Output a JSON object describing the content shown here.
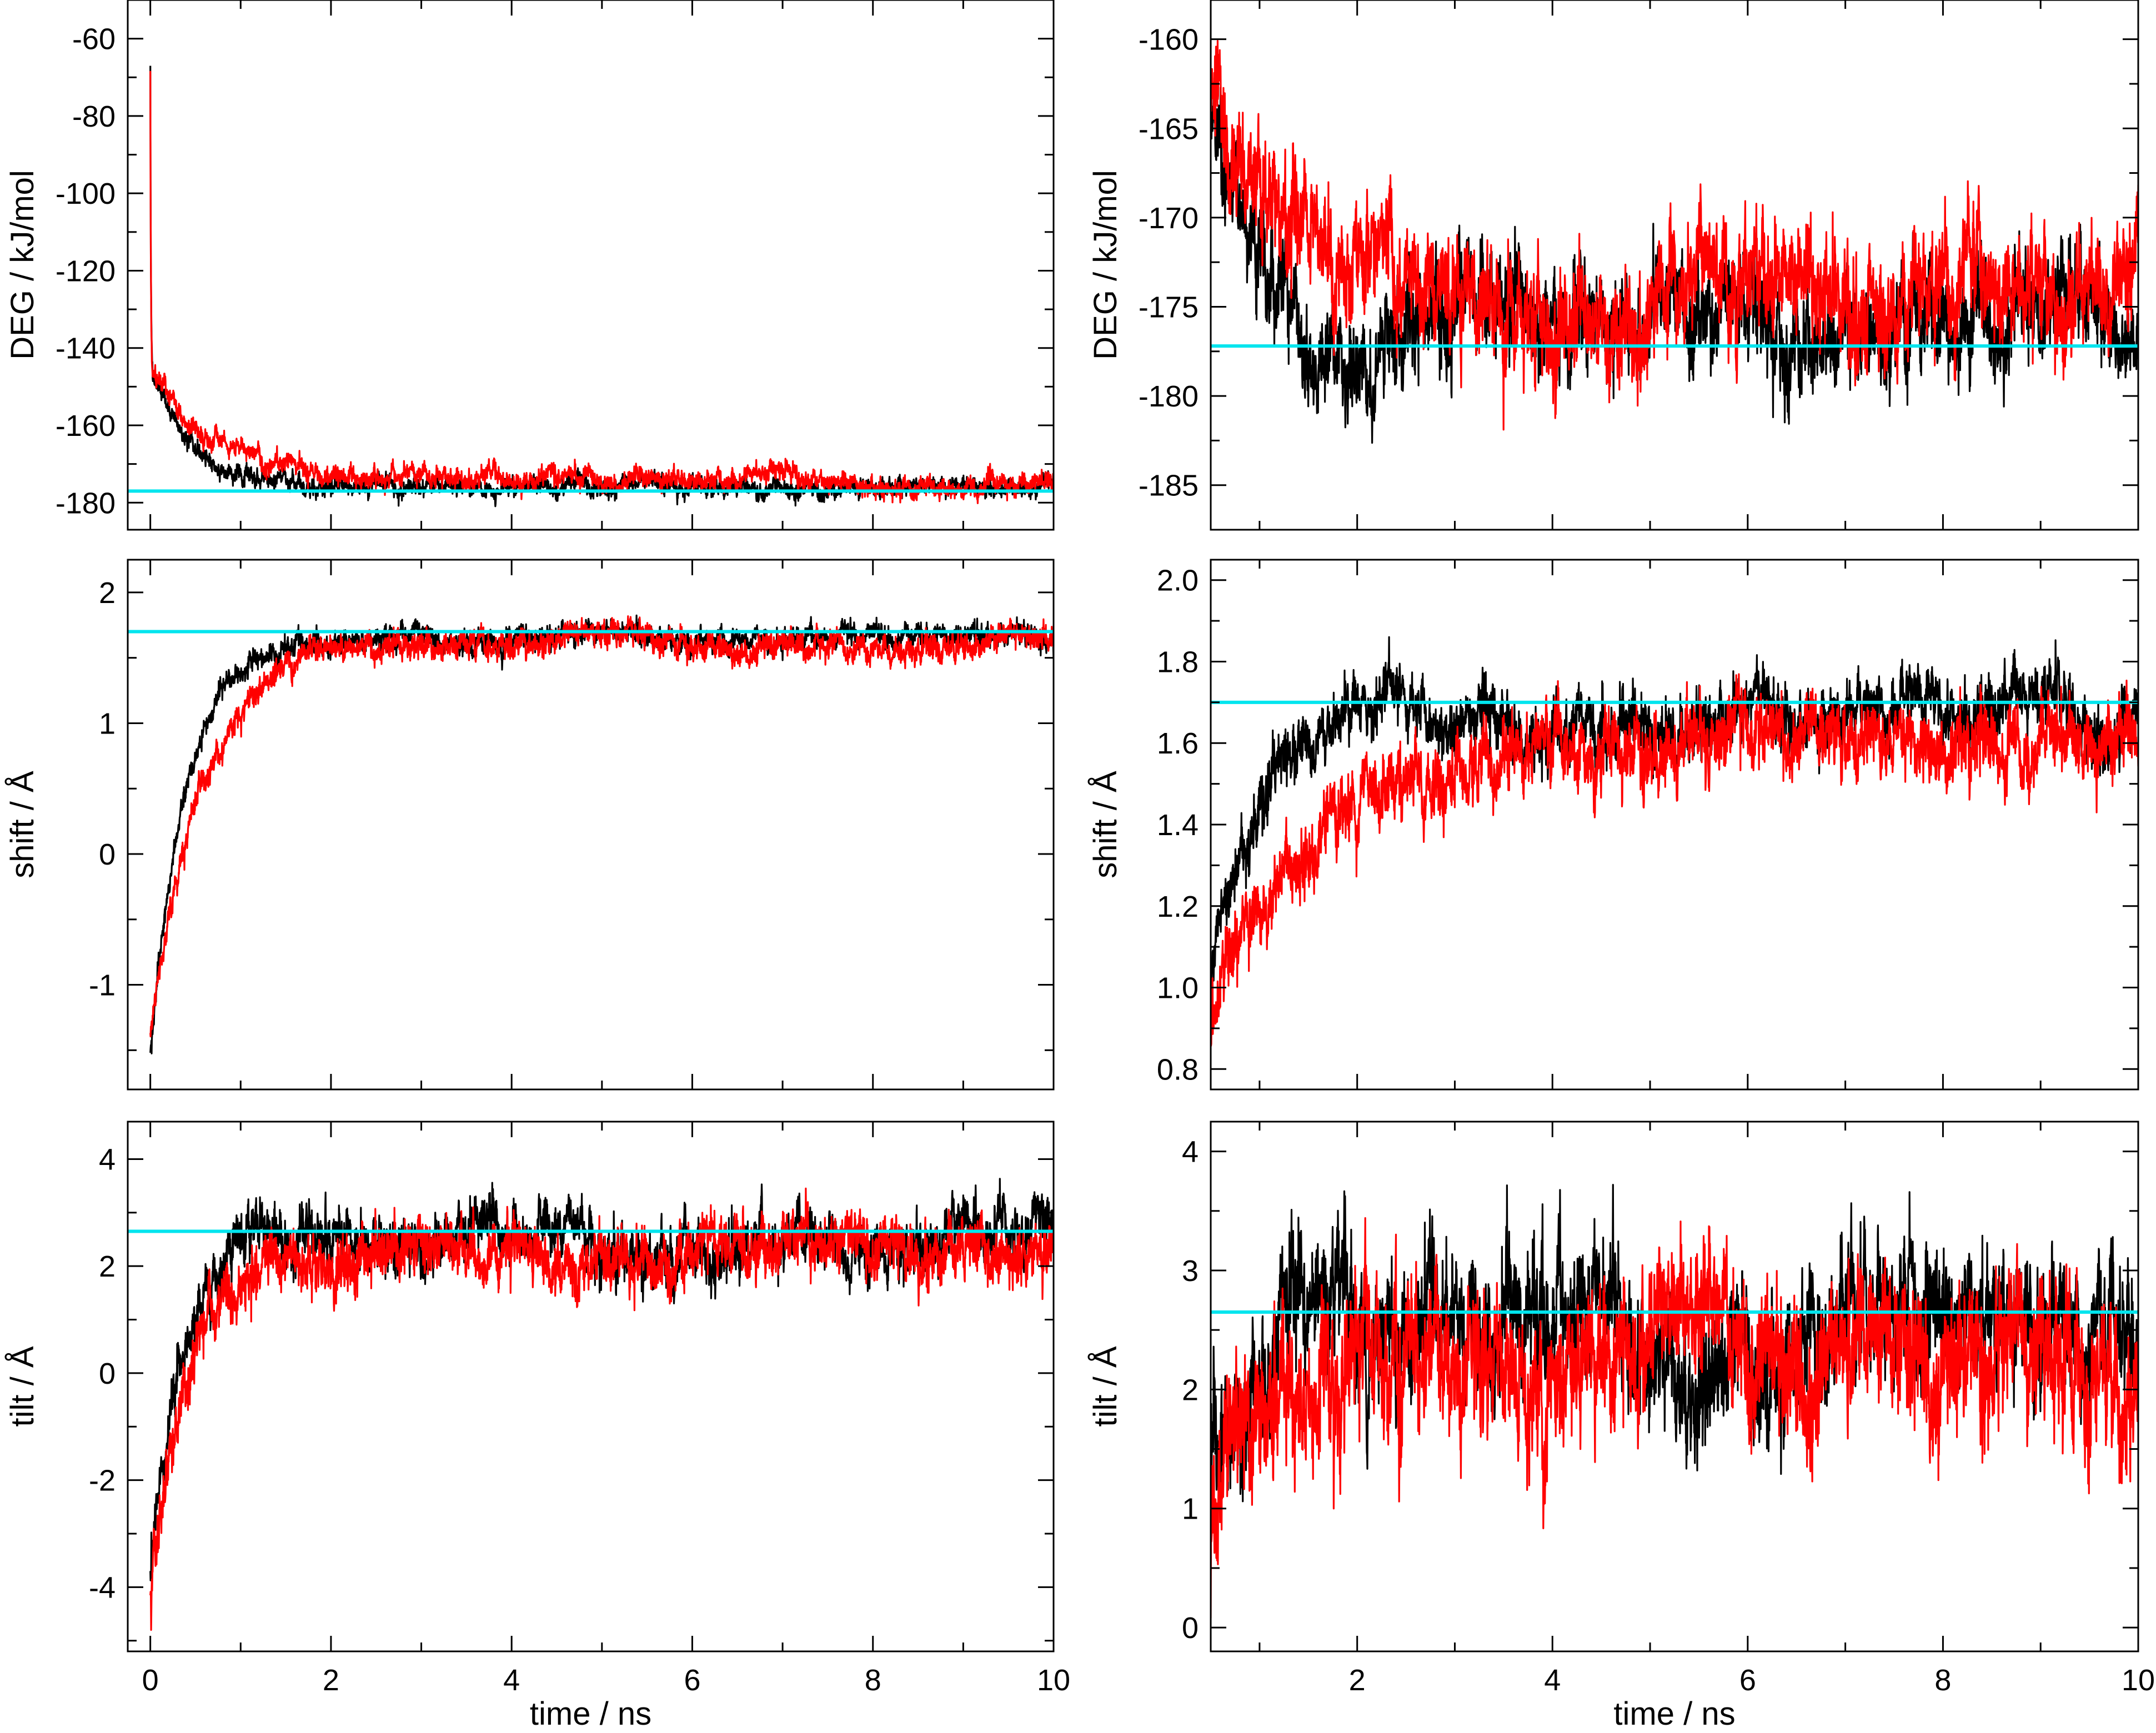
{
  "colors": {
    "black_series": "#000000",
    "red_series": "#ff0000",
    "reference_line": "#00e5ee",
    "axes": "#000000",
    "background": "#ffffff"
  },
  "chart_data": [
    {
      "id": "deg-full",
      "type": "line",
      "title": "",
      "xlabel": "",
      "ylabel": "DEG / kJ/mol",
      "xlim": [
        -0.25,
        10
      ],
      "ylim": [
        -187,
        -50
      ],
      "xticks": [
        0,
        2,
        4,
        6,
        8,
        10
      ],
      "yticks": [
        -180,
        -160,
        -140,
        -120,
        -100,
        -80,
        -60
      ],
      "ytick_labels": [
        "-180",
        "-160",
        "-140",
        "-120",
        "-100",
        "-80",
        "-60"
      ],
      "show_xtick_labels": false,
      "grid": false,
      "reference_line": -177,
      "series": [
        {
          "name": "black",
          "color": "#000000",
          "start": -145,
          "plateau": -176.5,
          "tau": 0.5,
          "noise": 1.9,
          "start_time": 0.0,
          "spike": -68,
          "seed": 11
        },
        {
          "name": "red",
          "color": "#ff0000",
          "start": -145,
          "plateau": -174.2,
          "tau": 0.55,
          "noise": 2.1,
          "start_time": 0.0,
          "spike": -68,
          "seed": 23
        }
      ]
    },
    {
      "id": "deg-zoom",
      "type": "line",
      "title": "",
      "xlabel": "",
      "ylabel": "DEG / kJ/mol",
      "xlim": [
        0.5,
        10
      ],
      "ylim": [
        -187.5,
        -157.8
      ],
      "xticks": [
        2,
        4,
        6,
        8,
        10
      ],
      "yticks": [
        -185,
        -180,
        -175,
        -170,
        -165,
        -160
      ],
      "ytick_labels": [
        "-185",
        "-180",
        "-175",
        "-170",
        "-165",
        "-160"
      ],
      "show_xtick_labels": false,
      "grid": false,
      "reference_line": -177.2,
      "series": [
        {
          "name": "black",
          "color": "#000000",
          "start": -165,
          "plateau": -176.2,
          "tau": 0.45,
          "noise": 2.2,
          "start_time": 0.5,
          "seed": 31
        },
        {
          "name": "red",
          "color": "#ff0000",
          "start": -162,
          "plateau": -174.5,
          "tau": 0.5,
          "noise": 2.4,
          "start_time": 0.5,
          "seed": 47
        }
      ]
    },
    {
      "id": "shift-full",
      "type": "line",
      "title": "",
      "xlabel": "",
      "ylabel": "shift / Å",
      "xlim": [
        -0.25,
        10
      ],
      "ylim": [
        -1.8,
        2.25
      ],
      "xticks": [
        0,
        2,
        4,
        6,
        8,
        10
      ],
      "yticks": [
        -1,
        0,
        1,
        2
      ],
      "ytick_labels": [
        "-1",
        "0",
        "1",
        "2"
      ],
      "show_xtick_labels": false,
      "grid": false,
      "reference_line": 1.7,
      "series": [
        {
          "name": "black",
          "color": "#000000",
          "start": -1.5,
          "plateau": 1.66,
          "tau": 0.4,
          "noise": 0.07,
          "start_time": 0.0,
          "seed": 53
        },
        {
          "name": "red",
          "color": "#ff0000",
          "start": -1.4,
          "plateau": 1.6,
          "tau": 0.55,
          "noise": 0.08,
          "start_time": 0.0,
          "seed": 61
        }
      ]
    },
    {
      "id": "shift-zoom",
      "type": "line",
      "title": "",
      "xlabel": "",
      "ylabel": "shift / Å",
      "xlim": [
        0.5,
        10
      ],
      "ylim": [
        0.75,
        2.05
      ],
      "xticks": [
        2,
        4,
        6,
        8,
        10
      ],
      "yticks": [
        0.8,
        1.0,
        1.2,
        1.4,
        1.6,
        1.8,
        2.0
      ],
      "ytick_labels": [
        "0.8",
        "1.0",
        "1.2",
        "1.4",
        "1.6",
        "1.8",
        "2.0"
      ],
      "show_xtick_labels": false,
      "grid": false,
      "reference_line": 1.7,
      "series": [
        {
          "name": "black",
          "color": "#000000",
          "start": 1.05,
          "plateau": 1.66,
          "tau": 0.5,
          "noise": 0.06,
          "start_time": 0.5,
          "seed": 71
        },
        {
          "name": "red",
          "color": "#ff0000",
          "start": 0.9,
          "plateau": 1.6,
          "tau": 0.9,
          "noise": 0.07,
          "start_time": 0.5,
          "seed": 83
        }
      ]
    },
    {
      "id": "tilt-full",
      "type": "line",
      "title": "",
      "xlabel": "time / ns",
      "ylabel": "tilt / Å",
      "xlim": [
        -0.25,
        10
      ],
      "ylim": [
        -5.2,
        4.7
      ],
      "xticks": [
        0,
        2,
        4,
        6,
        8,
        10
      ],
      "xtick_labels": [
        "0",
        "2",
        "4",
        "6",
        "8",
        "10"
      ],
      "yticks": [
        -4,
        -2,
        0,
        2,
        4
      ],
      "ytick_labels": [
        "-4",
        "-2",
        "0",
        "2",
        "4"
      ],
      "show_xtick_labels": true,
      "grid": false,
      "reference_line": 2.65,
      "series": [
        {
          "name": "black",
          "color": "#000000",
          "start": -4.0,
          "plateau": 2.55,
          "tau": 0.35,
          "noise": 0.4,
          "start_time": 0.0,
          "seed": 97
        },
        {
          "name": "red",
          "color": "#ff0000",
          "start": -4.2,
          "plateau": 2.25,
          "tau": 0.4,
          "noise": 0.42,
          "start_time": 0.0,
          "seed": 101
        }
      ]
    },
    {
      "id": "tilt-zoom",
      "type": "line",
      "title": "",
      "xlabel": "time / ns",
      "ylabel": "tilt / Å",
      "xlim": [
        0.5,
        10
      ],
      "ylim": [
        -0.2,
        4.25
      ],
      "xticks": [
        2,
        4,
        6,
        8,
        10
      ],
      "xtick_labels": [
        "2",
        "4",
        "6",
        "8",
        "10"
      ],
      "yticks": [
        0,
        1,
        2,
        3,
        4
      ],
      "ytick_labels": [
        "0",
        "1",
        "2",
        "3",
        "4"
      ],
      "show_xtick_labels": true,
      "grid": false,
      "reference_line": 2.65,
      "series": [
        {
          "name": "black",
          "color": "#000000",
          "start": 1.2,
          "plateau": 2.55,
          "tau": 0.35,
          "noise": 0.42,
          "start_time": 0.5,
          "seed": 113
        },
        {
          "name": "red",
          "color": "#ff0000",
          "start": 0.6,
          "plateau": 2.25,
          "tau": 0.4,
          "noise": 0.45,
          "start_time": 0.5,
          "seed": 127
        }
      ]
    }
  ]
}
